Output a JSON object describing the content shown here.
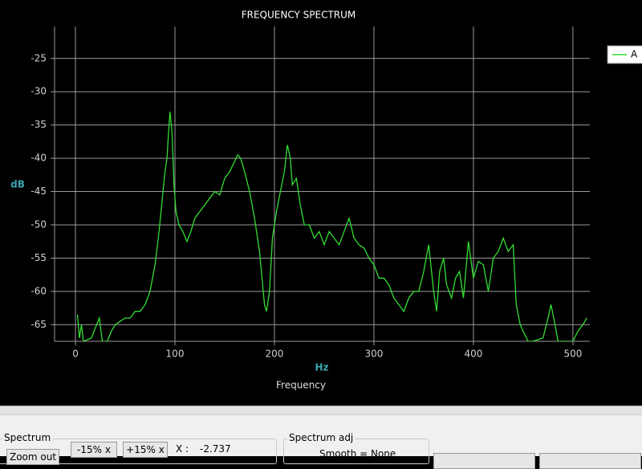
{
  "chart_data": {
    "type": "line",
    "title": "FREQUENCY SPECTRUM",
    "x_label": "Hz",
    "x_caption": "Frequency",
    "y_label": "dB",
    "x": [
      2,
      4,
      6,
      8,
      16,
      20,
      24,
      27,
      32,
      36,
      40,
      45,
      50,
      55,
      60,
      65,
      70,
      75,
      80,
      84,
      88,
      90,
      92,
      94,
      95,
      97,
      99,
      101,
      104,
      108,
      112,
      116,
      120,
      125,
      130,
      135,
      140,
      145,
      150,
      155,
      160,
      163,
      166,
      170,
      175,
      180,
      185,
      190,
      192,
      195,
      198,
      202,
      206,
      210,
      213,
      216,
      218,
      222,
      226,
      230,
      235,
      240,
      245,
      250,
      255,
      260,
      265,
      270,
      275,
      280,
      285,
      290,
      295,
      300,
      305,
      310,
      315,
      320,
      325,
      330,
      335,
      340,
      345,
      350,
      355,
      360,
      363,
      366,
      370,
      373,
      378,
      382,
      386,
      390,
      395,
      400,
      405,
      410,
      415,
      420,
      425,
      430,
      435,
      440,
      443,
      447,
      450,
      455,
      460,
      470,
      475,
      478,
      482,
      485,
      500,
      505,
      510,
      514
    ],
    "series": [
      {
        "name": "A",
        "color": "#33dd33",
        "values": [
          -63.5,
          -67,
          -65,
          -67.5,
          -67,
          -65.5,
          -64,
          -67.5,
          -67.5,
          -66,
          -65,
          -64.5,
          -64,
          -64,
          -63,
          -63,
          -62,
          -60,
          -56,
          -51,
          -45,
          -42,
          -40,
          -35,
          -33,
          -36,
          -44,
          -48,
          -50,
          -51,
          -52.5,
          -51,
          -49,
          -48,
          -47,
          -46,
          -45,
          -45.5,
          -43,
          -42,
          -40.5,
          -39.5,
          -40,
          -42,
          -45,
          -49,
          -54,
          -62,
          -63,
          -60,
          -52,
          -48,
          -45,
          -42,
          -38,
          -40,
          -44,
          -43,
          -47,
          -50,
          -50,
          -52,
          -51,
          -53,
          -51,
          -52,
          -53,
          -51,
          -49,
          -52,
          -53,
          -53.5,
          -55,
          -56,
          -58,
          -58,
          -59,
          -61,
          -62,
          -63,
          -61,
          -60,
          -60,
          -57,
          -53,
          -60,
          -63,
          -57,
          -55,
          -59,
          -61,
          -58,
          -57,
          -61,
          -52.5,
          -58,
          -55.5,
          -56,
          -60,
          -55,
          -54,
          -52,
          -54,
          -53,
          -62,
          -65,
          -66,
          -67.5,
          -67.5,
          -67,
          -64,
          -62,
          -65,
          -67.5,
          -67.5,
          -66,
          -65,
          -64
        ]
      }
    ],
    "xlim": [
      -21,
      517
    ],
    "ylim": [
      -67.5,
      -20.2
    ],
    "xticks": [
      0,
      100,
      200,
      300,
      400,
      500
    ],
    "yticks": [
      -25,
      -30,
      -35,
      -40,
      -45,
      -50,
      -55,
      -60,
      -65
    ],
    "grid": true,
    "legend": "right"
  },
  "ui": {
    "spectrum_group": "Spectrum",
    "zoom_out": "Zoom out",
    "minus_x": "-15% x",
    "plus_x": "+15% x",
    "x_label": "X :",
    "x_value": "-2.737",
    "adj_group": "Spectrum adj",
    "smooth": "Smooth = None"
  }
}
